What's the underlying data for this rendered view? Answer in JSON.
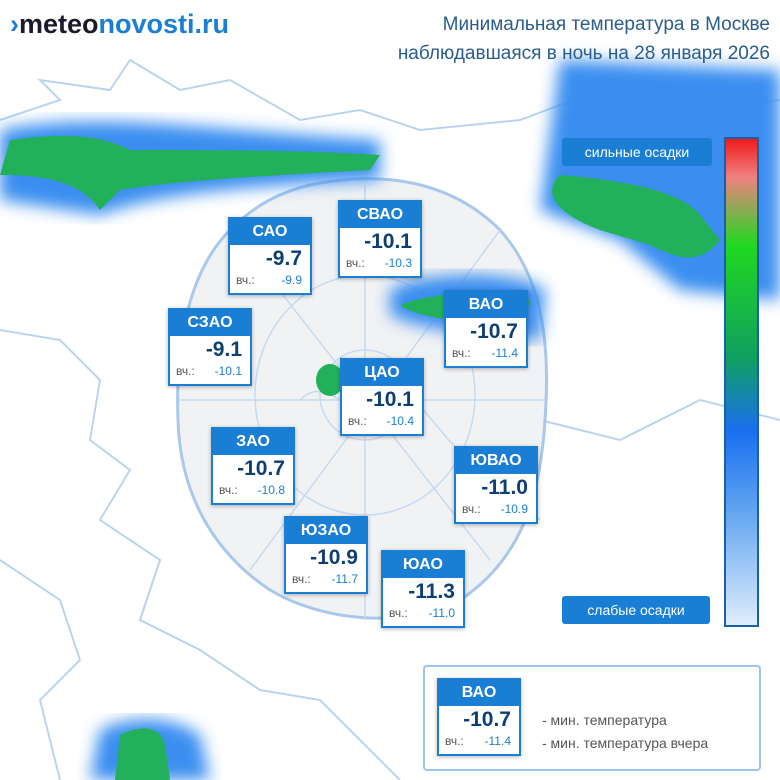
{
  "header": {
    "logo_part1": "meteo",
    "logo_part2": "novosti.ru",
    "title_line1": "Минимальная температура в Москве",
    "title_line2": "наблюдавшаяся в ночь на 28 января 2026"
  },
  "yesterday_label": "вч.:",
  "districts": [
    {
      "name": "САО",
      "temp": "-9.7",
      "yesterday": "-9.9"
    },
    {
      "name": "СВАО",
      "temp": "-10.1",
      "yesterday": "-10.3"
    },
    {
      "name": "СЗАО",
      "temp": "-9.1",
      "yesterday": "-10.1"
    },
    {
      "name": "ВАО",
      "temp": "-10.7",
      "yesterday": "-11.4"
    },
    {
      "name": "ЦАО",
      "temp": "-10.1",
      "yesterday": "-10.4"
    },
    {
      "name": "ЗАО",
      "temp": "-10.7",
      "yesterday": "-10.8"
    },
    {
      "name": "ЮВАО",
      "temp": "-11.0",
      "yesterday": "-10.9"
    },
    {
      "name": "ЮЗАО",
      "temp": "-10.9",
      "yesterday": "-11.7"
    },
    {
      "name": "ЮАО",
      "temp": "-11.3",
      "yesterday": "-11.0"
    }
  ],
  "colorbar": {
    "top_label": "сильные осадки",
    "bottom_label": "слабые осадки"
  },
  "legend": {
    "name": "ВАО",
    "temp": "-10.7",
    "yesterday": "-11.4",
    "temp_desc": "- мин. температура",
    "yesterday_desc": "- мин. температура вчера"
  }
}
